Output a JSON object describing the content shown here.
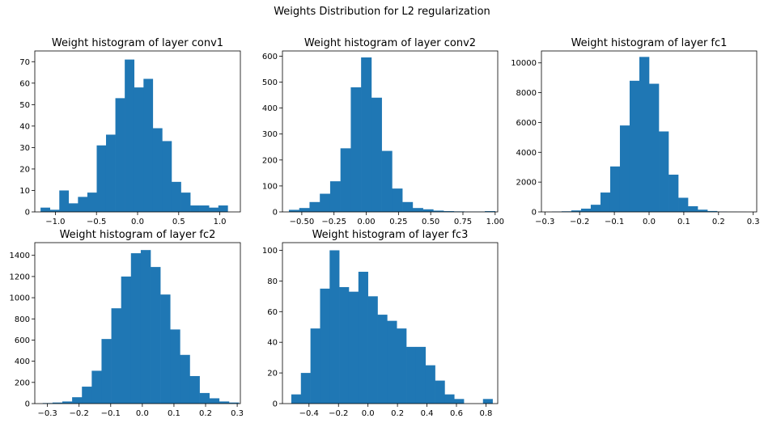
{
  "figure": {
    "suptitle": "Weights Distribution for L2 regularization",
    "bar_color": "#1f77b4"
  },
  "chart_data": [
    {
      "type": "bar",
      "title": "Weight histogram of layer conv1",
      "xlim": [
        -1.25,
        1.25
      ],
      "ylim": [
        0,
        75
      ],
      "xticks": [
        -1.0,
        -0.5,
        0.0,
        0.5,
        1.0
      ],
      "xtick_labels": [
        "−1.0",
        "−0.5",
        "0.0",
        "0.5",
        "1.0"
      ],
      "yticks": [
        0,
        10,
        20,
        30,
        40,
        50,
        60,
        70
      ],
      "yticks_labels": [
        "0",
        "10",
        "20",
        "30",
        "40",
        "50",
        "60",
        "70"
      ],
      "bin_edges": [
        -1.18,
        -1.066,
        -0.952,
        -0.839,
        -0.725,
        -0.611,
        -0.497,
        -0.384,
        -0.27,
        -0.156,
        -0.042,
        0.072,
        0.185,
        0.299,
        0.413,
        0.527,
        0.641,
        0.754,
        0.868,
        0.982,
        1.096,
        1.21
      ],
      "counts": [
        2,
        1,
        10,
        4,
        7,
        9,
        31,
        36,
        53,
        71,
        58,
        62,
        39,
        33,
        14,
        9,
        3,
        3,
        2,
        3,
        0
      ]
    },
    {
      "type": "bar",
      "title": "Weight histogram of layer conv2",
      "xlim": [
        -0.65,
        1.02
      ],
      "ylim": [
        0,
        620
      ],
      "xticks": [
        -0.5,
        -0.25,
        0.0,
        0.25,
        0.5,
        0.75,
        1.0
      ],
      "xtick_labels": [
        "−0.50",
        "−0.25",
        "0.00",
        "0.25",
        "0.50",
        "0.75",
        "1.00"
      ],
      "yticks": [
        0,
        100,
        200,
        300,
        400,
        500,
        600
      ],
      "yticks_labels": [
        "0",
        "100",
        "200",
        "300",
        "400",
        "500",
        "600"
      ],
      "bin_edges": [
        -0.6,
        -0.52,
        -0.44,
        -0.36,
        -0.28,
        -0.2,
        -0.12,
        -0.04,
        0.04,
        0.12,
        0.2,
        0.28,
        0.36,
        0.44,
        0.52,
        0.6,
        0.68,
        0.76,
        0.84,
        0.92,
        1.0
      ],
      "counts": [
        8,
        15,
        38,
        70,
        118,
        245,
        480,
        595,
        440,
        235,
        90,
        38,
        15,
        10,
        5,
        3,
        2,
        1,
        1,
        3
      ]
    },
    {
      "type": "bar",
      "title": "Weight histogram of layer fc1",
      "xlim": [
        -0.31,
        0.31
      ],
      "ylim": [
        0,
        10800
      ],
      "xticks": [
        -0.3,
        -0.2,
        -0.1,
        0.0,
        0.1,
        0.2,
        0.3
      ],
      "xtick_labels": [
        "−0.3",
        "−0.2",
        "−0.1",
        "0.0",
        "0.1",
        "0.2",
        "0.3"
      ],
      "yticks": [
        0,
        2000,
        4000,
        6000,
        8000,
        10000
      ],
      "yticks_labels": [
        "0",
        "2000",
        "4000",
        "6000",
        "8000",
        "10000"
      ],
      "bin_edges": [
        -0.28,
        -0.252,
        -0.224,
        -0.196,
        -0.168,
        -0.14,
        -0.112,
        -0.084,
        -0.056,
        -0.028,
        0.0,
        0.028,
        0.056,
        0.084,
        0.112,
        0.14,
        0.168,
        0.196,
        0.224,
        0.252,
        0.28
      ],
      "counts": [
        20,
        40,
        100,
        220,
        480,
        1300,
        3050,
        5800,
        8800,
        10400,
        8600,
        5400,
        2500,
        950,
        380,
        150,
        60,
        20,
        10,
        5
      ]
    },
    {
      "type": "bar",
      "title": "Weight histogram of layer fc2",
      "xlim": [
        -0.34,
        0.31
      ],
      "ylim": [
        0,
        1520
      ],
      "xticks": [
        -0.3,
        -0.2,
        -0.1,
        0.0,
        0.1,
        0.2,
        0.3
      ],
      "xtick_labels": [
        "−0.3",
        "−0.2",
        "−0.1",
        "0.0",
        "0.1",
        "0.2",
        "0.3"
      ],
      "yticks": [
        0,
        200,
        400,
        600,
        800,
        1000,
        1200,
        1400
      ],
      "yticks_labels": [
        "0",
        "200",
        "400",
        "600",
        "800",
        "1000",
        "1200",
        "1400"
      ],
      "bin_edges": [
        -0.315,
        -0.284,
        -0.253,
        -0.222,
        -0.191,
        -0.16,
        -0.129,
        -0.098,
        -0.067,
        -0.036,
        -0.005,
        0.026,
        0.057,
        0.088,
        0.119,
        0.15,
        0.181,
        0.212,
        0.243,
        0.274,
        0.305
      ],
      "counts": [
        5,
        10,
        20,
        60,
        160,
        310,
        610,
        900,
        1200,
        1420,
        1450,
        1290,
        1030,
        700,
        460,
        260,
        100,
        50,
        20,
        10
      ]
    },
    {
      "type": "bar",
      "title": "Weight histogram of layer fc3",
      "xlim": [
        -0.58,
        0.88
      ],
      "ylim": [
        0,
        105
      ],
      "xticks": [
        -0.4,
        -0.2,
        0.0,
        0.2,
        0.4,
        0.6,
        0.8
      ],
      "xtick_labels": [
        "−0.4",
        "−0.2",
        "0.0",
        "0.2",
        "0.4",
        "0.6",
        "0.8"
      ],
      "yticks": [
        0,
        20,
        40,
        60,
        80,
        100
      ],
      "yticks_labels": [
        "0",
        "20",
        "40",
        "60",
        "80",
        "100"
      ],
      "bin_edges": [
        -0.52,
        -0.455,
        -0.39,
        -0.325,
        -0.26,
        -0.195,
        -0.13,
        -0.065,
        0.0,
        0.065,
        0.13,
        0.195,
        0.26,
        0.325,
        0.39,
        0.455,
        0.52,
        0.585,
        0.65,
        0.715,
        0.78,
        0.845
      ],
      "counts": [
        6,
        20,
        49,
        75,
        100,
        76,
        73,
        86,
        70,
        58,
        54,
        49,
        37,
        37,
        25,
        15,
        6,
        3,
        0,
        0,
        3
      ]
    }
  ]
}
